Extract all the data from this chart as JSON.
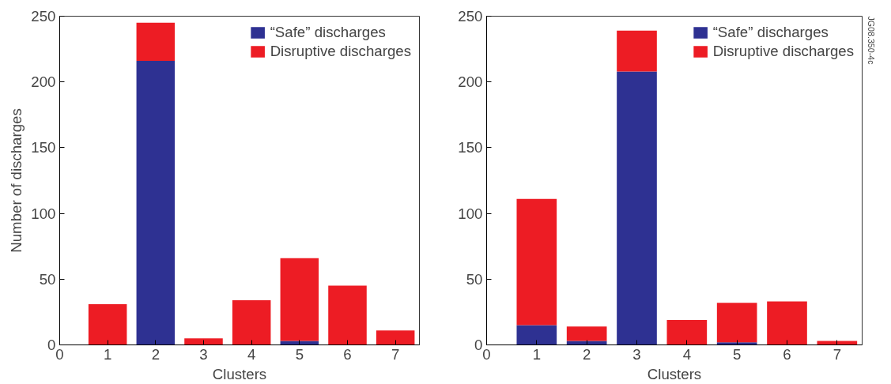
{
  "chart_data": [
    {
      "type": "bar",
      "stacked": true,
      "xlabel": "Clusters",
      "ylabel": "Number of discharges",
      "x": [
        1,
        2,
        3,
        4,
        5,
        6,
        7
      ],
      "xlim": [
        0,
        7.5
      ],
      "xticks": [
        0,
        1,
        2,
        3,
        4,
        5,
        6,
        7
      ],
      "ylim": [
        0,
        250
      ],
      "yticks": [
        0,
        50,
        100,
        150,
        200,
        250
      ],
      "legend": "top right",
      "grid": false,
      "series": [
        {
          "name": "“Safe” discharges",
          "color": "#2e3192",
          "values": [
            0,
            216,
            0,
            0,
            3,
            0,
            0
          ]
        },
        {
          "name": "Disruptive discharges",
          "color": "#ed1c24",
          "values": [
            31,
            29,
            5,
            34,
            63,
            45,
            11
          ]
        }
      ]
    },
    {
      "type": "bar",
      "stacked": true,
      "xlabel": "Clusters",
      "x": [
        1,
        2,
        3,
        4,
        5,
        6,
        7
      ],
      "xlim": [
        0,
        7.5
      ],
      "xticks": [
        0,
        1,
        2,
        3,
        4,
        5,
        6,
        7
      ],
      "ylim": [
        0,
        250
      ],
      "yticks": [
        0,
        50,
        100,
        150,
        200,
        250
      ],
      "legend": "top right",
      "grid": false,
      "annotations": [
        "JG08.350-4c"
      ],
      "series": [
        {
          "name": "“Safe” discharges",
          "color": "#2e3192",
          "values": [
            15,
            3,
            208,
            0,
            2,
            0,
            0
          ]
        },
        {
          "name": "Disruptive discharges",
          "color": "#ed1c24",
          "values": [
            96,
            11,
            31,
            19,
            30,
            33,
            3
          ]
        }
      ]
    }
  ]
}
